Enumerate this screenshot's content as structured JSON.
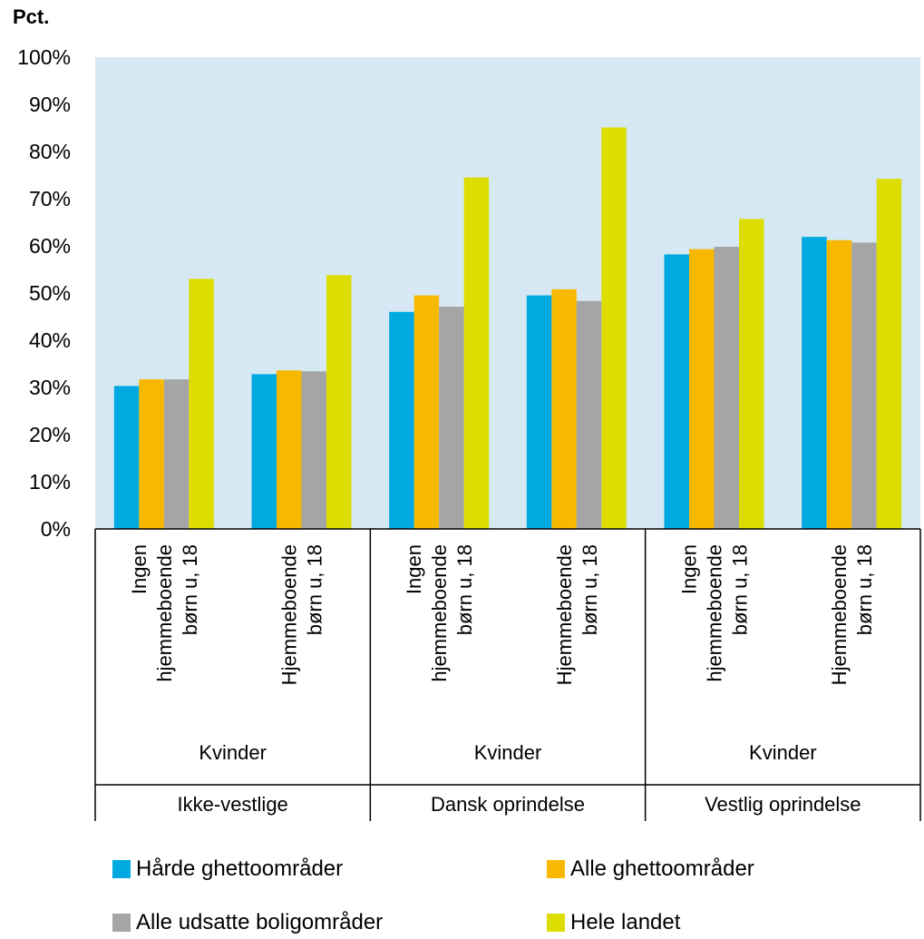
{
  "chart_data": {
    "type": "bar",
    "y_axis_title": "Pct.",
    "ylim": [
      0,
      100
    ],
    "y_ticks": [
      "0%",
      "10%",
      "20%",
      "30%",
      "40%",
      "50%",
      "60%",
      "70%",
      "80%",
      "90%",
      "100%"
    ],
    "grid": false,
    "plot_background": "#d5e8f4",
    "categories": [
      {
        "lines": [
          "Ingen",
          "hjemmeboende",
          "børn u, 18"
        ],
        "sub": "Kvinder",
        "group": "Ikke-vestlige"
      },
      {
        "lines": [
          "Hjemmeboende",
          "børn u, 18"
        ],
        "sub": "Kvinder",
        "group": "Ikke-vestlige"
      },
      {
        "lines": [
          "Ingen",
          "hjemmeboende",
          "børn u, 18"
        ],
        "sub": "Kvinder",
        "group": "Dansk oprindelse"
      },
      {
        "lines": [
          "Hjemmeboende",
          "børn u, 18"
        ],
        "sub": "Kvinder",
        "group": "Dansk oprindelse"
      },
      {
        "lines": [
          "Ingen",
          "hjemmeboende",
          "børn u, 18"
        ],
        "sub": "Kvinder",
        "group": "Vestlig oprindelse"
      },
      {
        "lines": [
          "Hjemmeboende",
          "børn u, 18"
        ],
        "sub": "Kvinder",
        "group": "Vestlig oprindelse"
      }
    ],
    "sub_labels": [
      "Kvinder",
      "Kvinder",
      "Kvinder"
    ],
    "groups": [
      "Ikke-vestlige",
      "Dansk oprindelse",
      "Vestlig oprindelse"
    ],
    "series": [
      {
        "name": "Hårde ghettoområder",
        "color": "#00a9e0",
        "values": [
          30.3,
          32.8,
          46.0,
          49.5,
          58.2,
          61.9
        ]
      },
      {
        "name": "Alle ghettoområder",
        "color": "#f9b800",
        "values": [
          31.7,
          33.6,
          49.5,
          50.8,
          59.3,
          61.2
        ]
      },
      {
        "name": "Alle udsatte boligområder",
        "color": "#a5a5a5",
        "values": [
          31.7,
          33.4,
          47.1,
          48.3,
          59.8,
          60.7
        ]
      },
      {
        "name": "Hele landet",
        "color": "#dddd00",
        "values": [
          53.0,
          53.8,
          74.5,
          85.1,
          65.7,
          74.2
        ]
      }
    ],
    "legend_position": "bottom"
  }
}
